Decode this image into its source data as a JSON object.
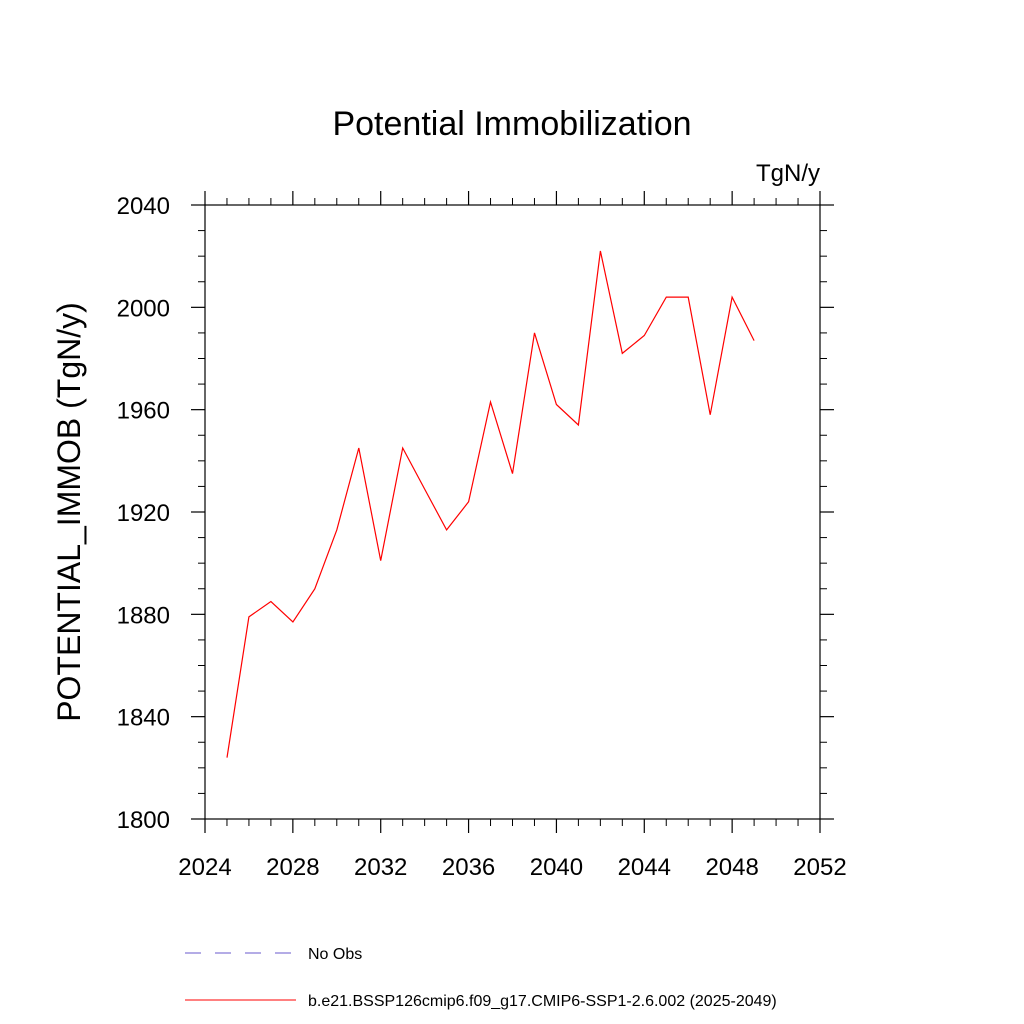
{
  "chart_data": {
    "type": "line",
    "title": "Potential Immobilization",
    "units_label": "TgN/y",
    "ylabel": "POTENTIAL_IMMOB  (TgN/y)",
    "xlabel": "",
    "xlim": [
      2024,
      2052
    ],
    "ylim": [
      1800,
      2040
    ],
    "x_ticks": [
      2024,
      2028,
      2032,
      2036,
      2040,
      2044,
      2048,
      2052
    ],
    "y_ticks": [
      1800,
      1840,
      1880,
      1920,
      1960,
      2000,
      2040
    ],
    "x_minor_step": 1,
    "y_minor_step": 10,
    "series": [
      {
        "name": "b.e21.BSSP126cmip6.f09_g17.CMIP6-SSP1-2.6.002 (2025-2049)",
        "color": "#ff0000",
        "style": "solid",
        "x": [
          2025,
          2026,
          2027,
          2028,
          2029,
          2030,
          2031,
          2032,
          2033,
          2034,
          2035,
          2036,
          2037,
          2038,
          2039,
          2040,
          2041,
          2042,
          2043,
          2044,
          2045,
          2046,
          2047,
          2048,
          2049
        ],
        "values": [
          1824,
          1879,
          1885,
          1877,
          1890,
          1913,
          1945,
          1901,
          1945,
          1929,
          1913,
          1924,
          1963,
          1935,
          1990,
          1962,
          1954,
          2022,
          1982,
          1989,
          2004,
          2004,
          1958,
          2004,
          1987
        ]
      }
    ],
    "legend": [
      {
        "label": "No Obs",
        "color": "#6a5acd",
        "style": "dashed"
      },
      {
        "label": "b.e21.BSSP126cmip6.f09_g17.CMIP6-SSP1-2.6.002 (2025-2049)",
        "color": "#ff0000",
        "style": "solid"
      }
    ],
    "legend_position": "bottom",
    "grid": false
  }
}
